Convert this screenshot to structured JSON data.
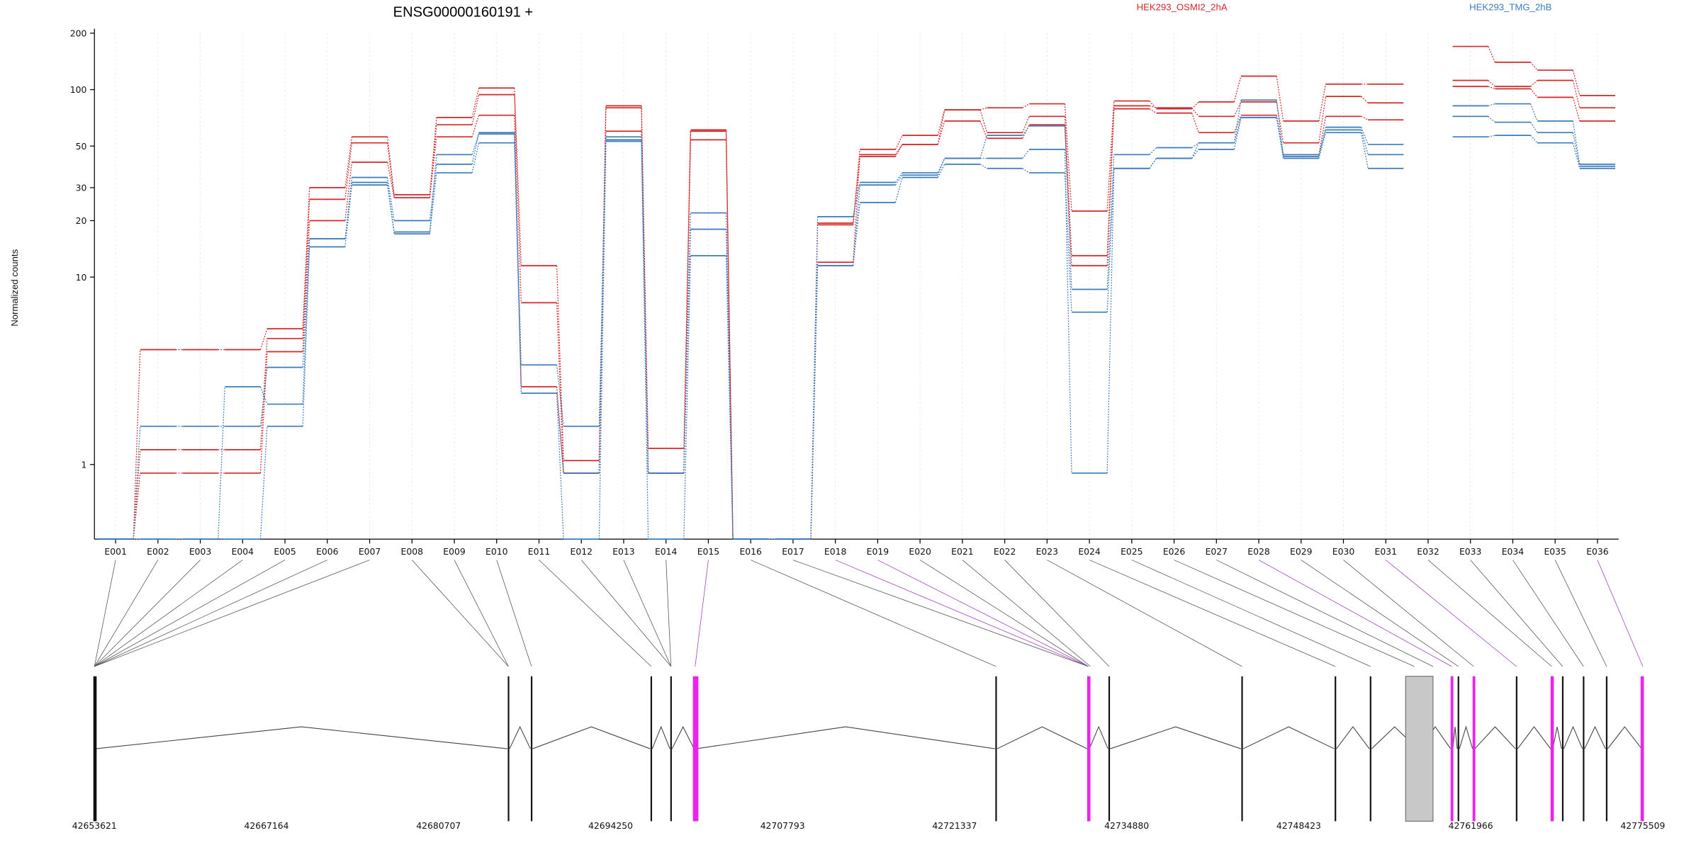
{
  "title": "ENSG00000160191 +",
  "ylabel": "Normalized counts",
  "legend": [
    {
      "label": "HEK293_OSMI2_2hA",
      "color": "#d62728"
    },
    {
      "label": "HEK293_TMG_2hB",
      "color": "#3a7bbf"
    }
  ],
  "colors": {
    "red": "#d62728",
    "blue": "#3a7bbf",
    "highlight": "#ea24ea",
    "connector": "#555555",
    "highlight_connector": "#a040c0",
    "gray_box": "#c8c8c8"
  },
  "genomic_ticks": [
    "42653621",
    "42667164",
    "42680707",
    "42694250",
    "42707793",
    "42721337",
    "42734880",
    "42748423",
    "42761966",
    "42775509"
  ],
  "chart_data": {
    "type": "line",
    "scale": "log",
    "ylim": [
      0.4,
      200
    ],
    "yticks": [
      {
        "value": 1,
        "label": "1"
      },
      {
        "value": 10,
        "label": "10"
      },
      {
        "value": 20,
        "label": "20"
      },
      {
        "value": 30,
        "label": "30"
      },
      {
        "value": 50,
        "label": "50"
      },
      {
        "value": 100,
        "label": "100"
      },
      {
        "value": 200,
        "label": "200"
      }
    ],
    "categories": [
      "E001",
      "E002",
      "E003",
      "E004",
      "E005",
      "E006",
      "E007",
      "E008",
      "E009",
      "E010",
      "E011",
      "E012",
      "E013",
      "E014",
      "E015",
      "E016",
      "E017",
      "E018",
      "E019",
      "E020",
      "E021",
      "E022",
      "E023",
      "E024",
      "E025",
      "E026",
      "E027",
      "E028",
      "E029",
      "E030",
      "E031",
      "E032",
      "E033",
      "E034",
      "E035",
      "E036"
    ],
    "series": [
      {
        "group": "red",
        "values": [
          0.4,
          4.1,
          4.1,
          4.1,
          5.3,
          30,
          56,
          27.5,
          71,
          102,
          11.5,
          1.05,
          82,
          1.22,
          61,
          0.4,
          0.4,
          19.4,
          48,
          57,
          78,
          80,
          84,
          22.5,
          87,
          79,
          86,
          118,
          68,
          107,
          107,
          null,
          170,
          140,
          127,
          93
        ]
      },
      {
        "group": "red",
        "values": [
          0.4,
          1.2,
          1.2,
          1.2,
          4.7,
          26,
          52,
          26.5,
          65,
          94,
          7.3,
          0.9,
          80,
          0.9,
          60,
          0.4,
          0.4,
          19,
          44,
          51,
          78,
          59,
          72,
          13,
          82,
          80,
          72,
          86,
          52,
          92,
          85,
          null,
          112,
          104,
          112,
          80
        ]
      },
      {
        "group": "red",
        "values": [
          0.4,
          0.9,
          0.9,
          0.9,
          4,
          20,
          41,
          26.5,
          56,
          73,
          2.6,
          0.9,
          60,
          0.9,
          54,
          0.4,
          0.4,
          12,
          45,
          51,
          68,
          55,
          65,
          11.5,
          79,
          75,
          59,
          73,
          45,
          72,
          69,
          null,
          104,
          101,
          91,
          68
        ]
      },
      {
        "group": "blue",
        "values": [
          0.4,
          1.6,
          1.6,
          1.6,
          3.3,
          16,
          32,
          17.4,
          45,
          58,
          3.4,
          1.6,
          56,
          0.9,
          22,
          0.4,
          0.4,
          21,
          32,
          36,
          43,
          57,
          64,
          8.6,
          45,
          49,
          52,
          88,
          44,
          63,
          51,
          null,
          82,
          84,
          68,
          40
        ]
      },
      {
        "group": "blue",
        "values": [
          0.4,
          0.4,
          0.4,
          2.6,
          2.1,
          16,
          34,
          20,
          40,
          59,
          2.4,
          0.9,
          54,
          0.9,
          18,
          0.4,
          0.4,
          11.5,
          31,
          35,
          43,
          43,
          48,
          0.9,
          38,
          43,
          48,
          71,
          45,
          61,
          45,
          null,
          72,
          67,
          59,
          39
        ]
      },
      {
        "group": "blue",
        "values": [
          0.4,
          0.4,
          0.4,
          0.4,
          1.6,
          14.5,
          31,
          17,
          36,
          52,
          2.4,
          0.4,
          53,
          0.4,
          13,
          0.4,
          0.4,
          11.5,
          25,
          34,
          40,
          38,
          36,
          6.5,
          38,
          43,
          52,
          71,
          43,
          59,
          38,
          null,
          56,
          57,
          52,
          38
        ]
      }
    ]
  }
}
